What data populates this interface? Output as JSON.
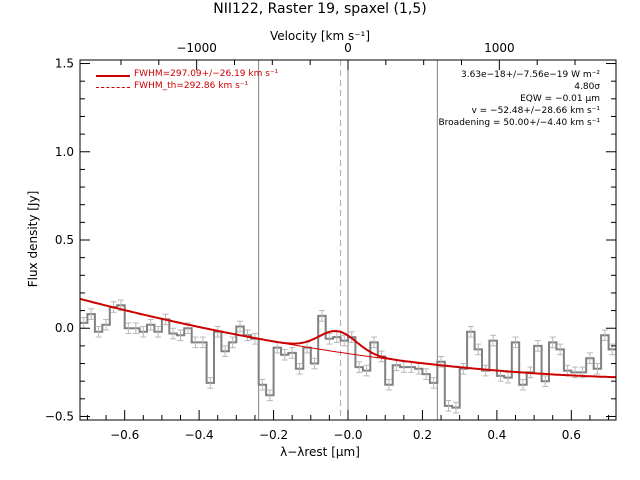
{
  "chart_data": {
    "type": "line",
    "title": "NII122, Raster 19, spaxel (1,5)",
    "xlabel": "λ−λrest [μm]",
    "ylabel": "Flux density [Jy]",
    "top_axis_label": "Velocity [km s⁻¹]",
    "xlim": [
      -0.72,
      0.72
    ],
    "ylim": [
      -0.52,
      1.52
    ],
    "x_ticks": [
      -0.6,
      -0.4,
      -0.2,
      0.0,
      0.2,
      0.4,
      0.6
    ],
    "x_tick_labels": [
      "−0.6",
      "−0.4",
      "−0.2",
      "−0.0",
      "0.2",
      "0.4",
      "0.6"
    ],
    "y_ticks": [
      -0.5,
      0.0,
      0.5,
      1.0,
      1.5
    ],
    "y_tick_labels": [
      "−0.5",
      "0.0",
      "0.5",
      "1.0",
      "1.5"
    ],
    "top_ticks_velocity": [
      -1000,
      0,
      1000
    ],
    "top_tick_labels": [
      "−1000",
      "0",
      "1000"
    ],
    "vertical_lines": [
      -0.24,
      0.0,
      0.24
    ],
    "dashed_line": -0.02,
    "series": [
      {
        "kind": "histogram",
        "color": "#808080",
        "bin_edges": [
          -0.72,
          -0.7,
          -0.68,
          -0.66,
          -0.64,
          -0.62,
          -0.6,
          -0.58,
          -0.56,
          -0.54,
          -0.52,
          -0.5,
          -0.48,
          -0.46,
          -0.44,
          -0.42,
          -0.4,
          -0.38,
          -0.36,
          -0.34,
          -0.32,
          -0.3,
          -0.28,
          -0.26,
          -0.24,
          -0.22,
          -0.2,
          -0.18,
          -0.16,
          -0.14,
          -0.12,
          -0.1,
          -0.08,
          -0.06,
          -0.04,
          -0.02,
          0.0,
          0.02,
          0.04,
          0.06,
          0.08,
          0.1,
          0.12,
          0.14,
          0.16,
          0.18,
          0.2,
          0.22,
          0.24,
          0.26,
          0.28,
          0.3,
          0.32,
          0.34,
          0.36,
          0.38,
          0.4,
          0.42,
          0.44,
          0.46,
          0.48,
          0.5,
          0.52,
          0.54,
          0.56,
          0.58,
          0.6,
          0.62,
          0.64,
          0.66,
          0.68,
          0.7,
          0.72
        ],
        "values": [
          0.03,
          0.08,
          -0.02,
          0.02,
          0.12,
          0.13,
          0.0,
          0.0,
          -0.02,
          0.02,
          -0.02,
          0.05,
          -0.03,
          -0.04,
          0.0,
          -0.08,
          -0.08,
          -0.31,
          -0.02,
          -0.13,
          -0.08,
          0.01,
          -0.04,
          -0.06,
          -0.32,
          -0.38,
          -0.11,
          -0.15,
          -0.14,
          -0.23,
          -0.11,
          -0.2,
          0.07,
          -0.06,
          -0.05,
          -0.07,
          -0.05,
          -0.22,
          -0.24,
          -0.08,
          -0.16,
          -0.32,
          -0.21,
          -0.22,
          -0.22,
          -0.23,
          -0.26,
          -0.31,
          -0.19,
          -0.44,
          -0.45,
          -0.23,
          -0.02,
          -0.12,
          -0.24,
          -0.07,
          -0.27,
          -0.28,
          -0.08,
          -0.32,
          -0.25,
          -0.1,
          -0.3,
          -0.08,
          -0.12,
          -0.24,
          -0.25,
          -0.25,
          -0.17,
          -0.23,
          -0.04,
          -0.12
        ],
        "errors": 0.03
      },
      {
        "name": "FWHM=297.09+/−26.19 km s⁻¹",
        "kind": "fit",
        "color": "#cc0000",
        "continuum": {
          "a": -0.1435,
          "b": -0.3083,
          "c": 0.1698
        },
        "gaussian": {
          "amplitude": 0.118,
          "center": -0.0275,
          "fwhm": 0.12
        }
      },
      {
        "name": "FWHM_th=292.86 km s⁻¹",
        "kind": "legend-only",
        "color": "#cc0000"
      }
    ]
  },
  "annotations": {
    "flux": "3.63e−18+/−7.56e−19 W m⁻²",
    "sigma": "4.80σ",
    "eqw": "EQW = −0.01 μm",
    "velocity": "v = −52.48+/−28.66 km s⁻¹",
    "broadening": "Broadening = 50.00+/−4.40 km s⁻¹"
  },
  "legend": {
    "fit": "FWHM=297.09+/−26.19 km s⁻¹",
    "thermal": "FWHM_th=292.86 km s⁻¹"
  },
  "colors": {
    "data": "#808080",
    "fit": "#cc0000",
    "axes": "#000000"
  }
}
